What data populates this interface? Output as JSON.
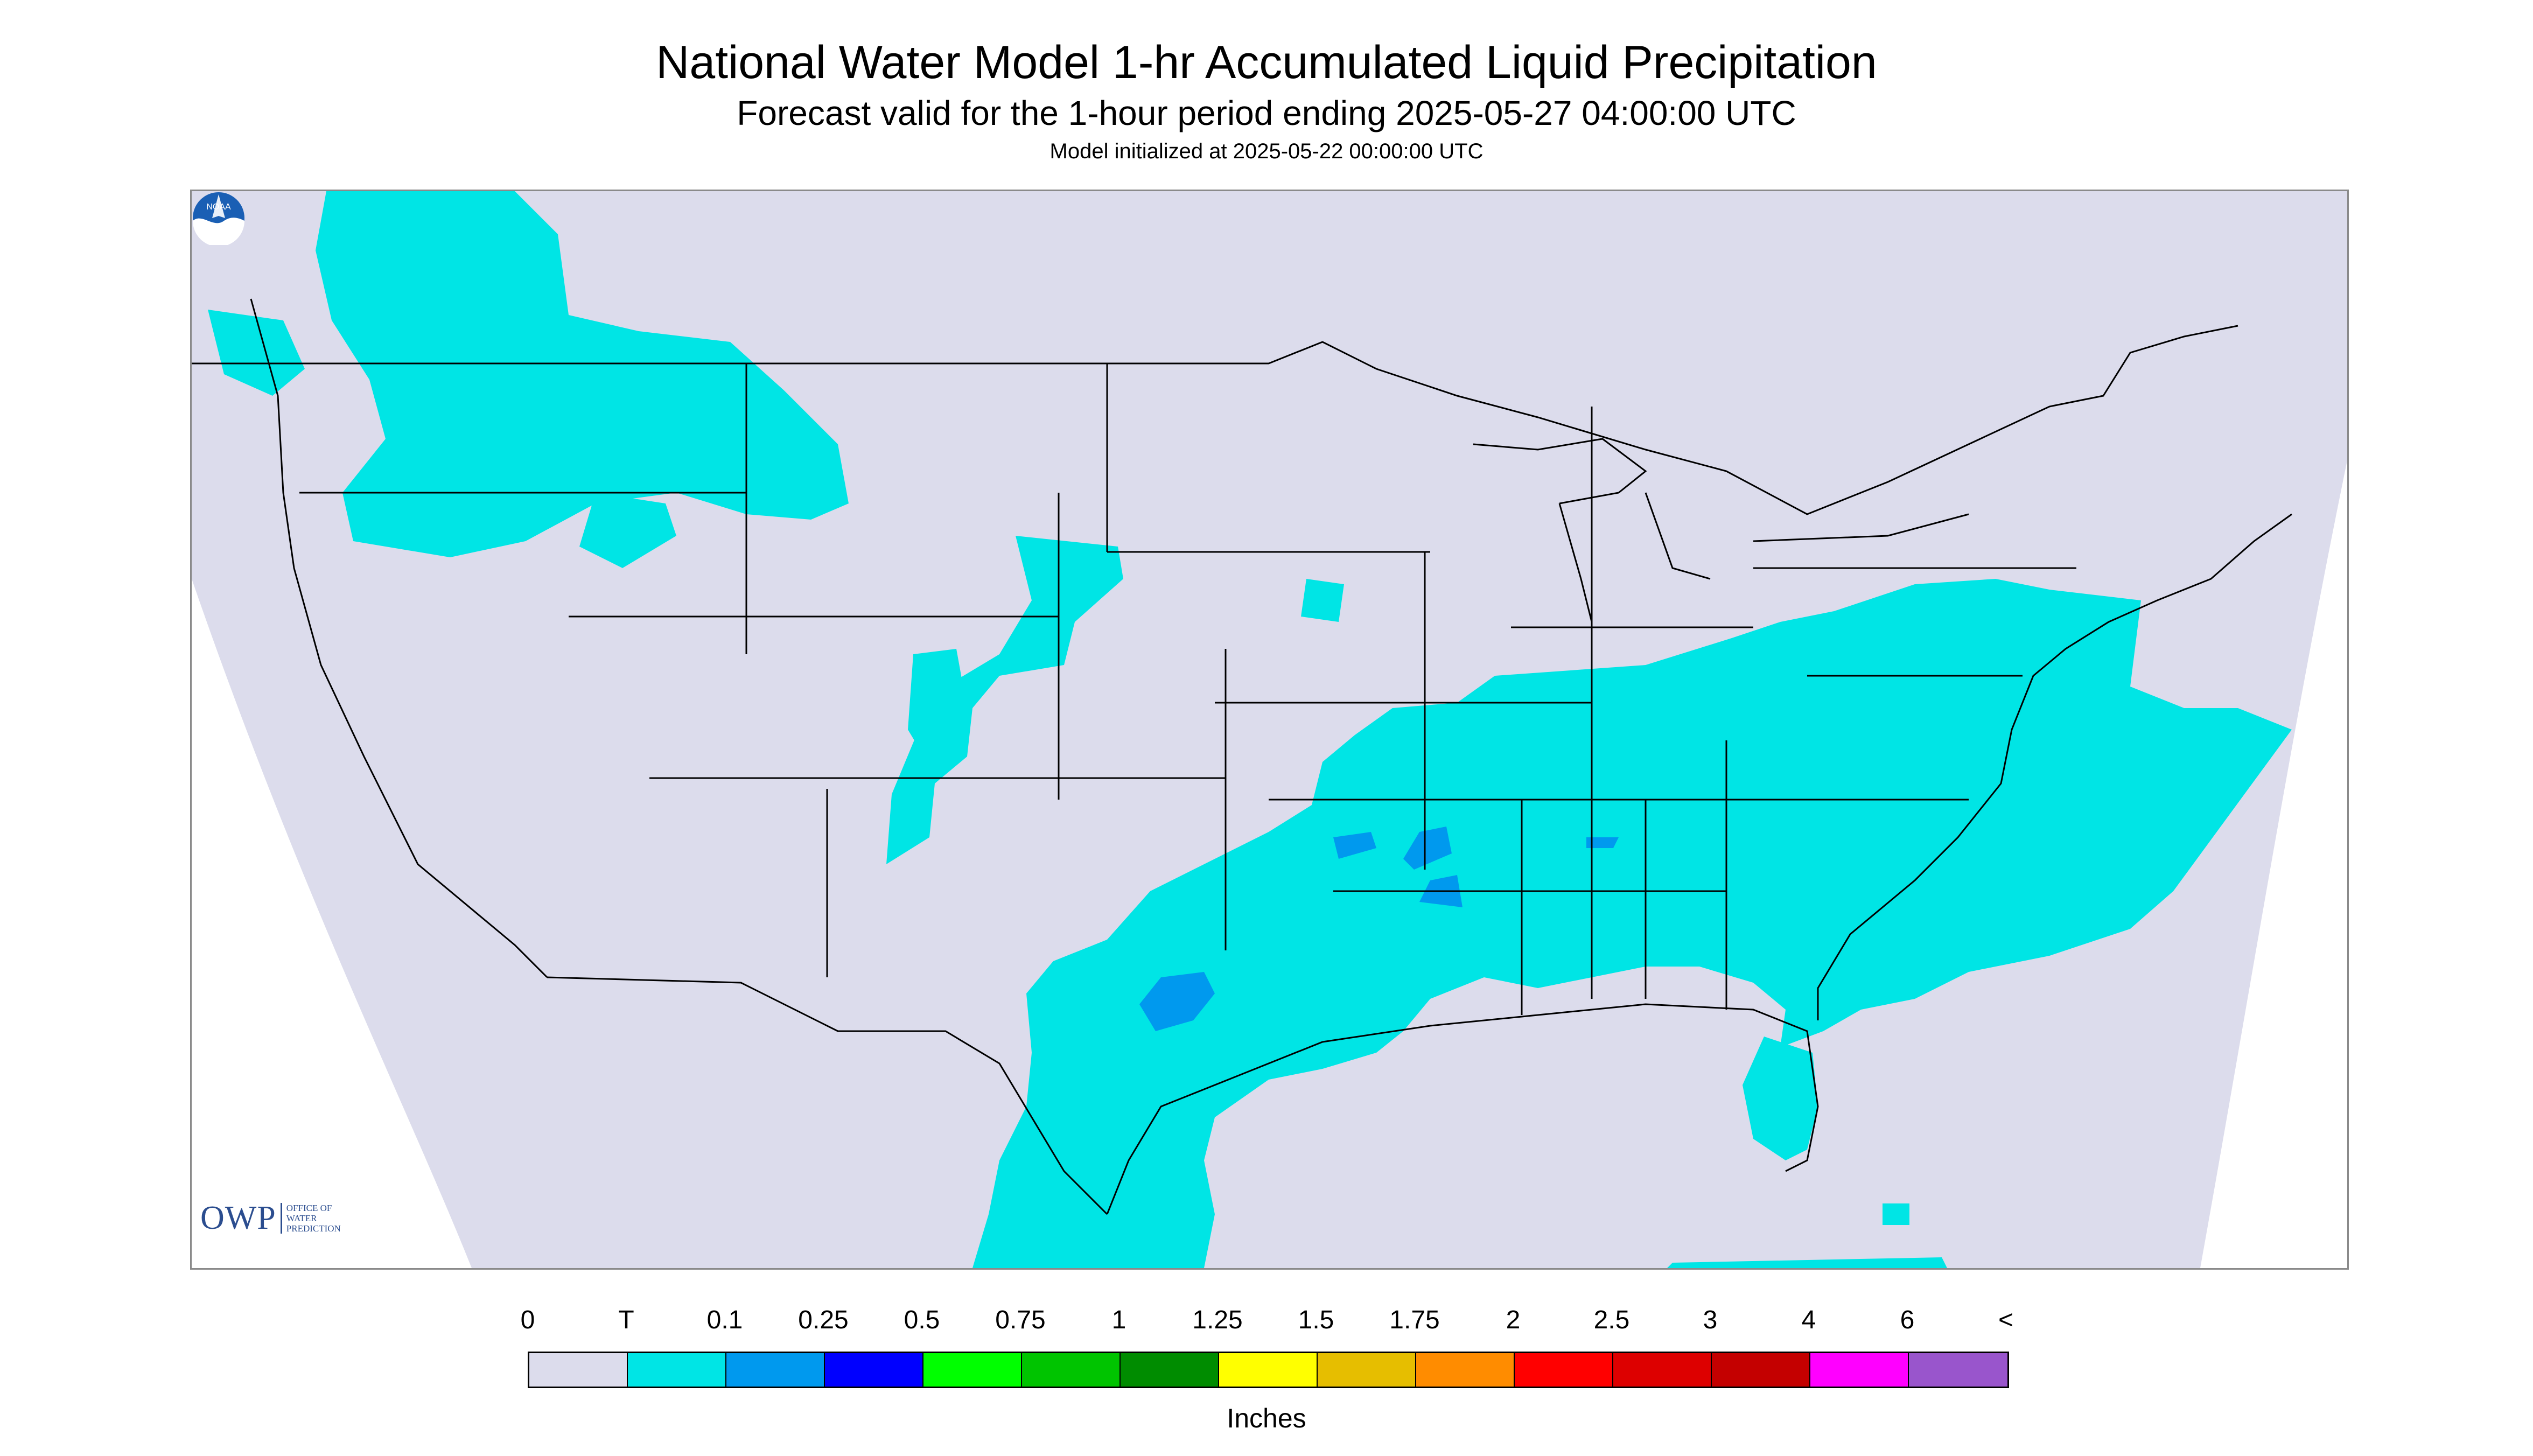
{
  "header": {
    "title": "National Water Model 1-hr Accumulated Liquid Precipitation",
    "subtitle": "Forecast valid for the 1-hour period ending 2025-05-27 04:00:00 UTC",
    "init": "Model initialized at 2025-05-22 00:00:00 UTC"
  },
  "logos": {
    "owp_mark": "OWP",
    "owp_text": [
      "OFFICE OF",
      "WATER",
      "PREDICTION"
    ],
    "noaa_text": "NOAA"
  },
  "legend": {
    "labels": [
      "0",
      "T",
      "0.1",
      "0.25",
      "0.5",
      "0.75",
      "1",
      "1.25",
      "1.5",
      "1.75",
      "2",
      "2.5",
      "3",
      "4",
      "6",
      "<"
    ],
    "colors": [
      "#dcdcec",
      "#00e5e5",
      "#0099ee",
      "#0000ff",
      "#00ff00",
      "#00c400",
      "#008c00",
      "#ffff00",
      "#e6be00",
      "#ff8c00",
      "#ff0000",
      "#dd0000",
      "#c40000",
      "#ff00ff",
      "#9955cc"
    ],
    "units": "Inches"
  },
  "map": {
    "domain_color": "#dcdcec",
    "precip_light": "#00e5e5",
    "precip_moderate": "#0099ee",
    "boundary_color": "#000000"
  }
}
